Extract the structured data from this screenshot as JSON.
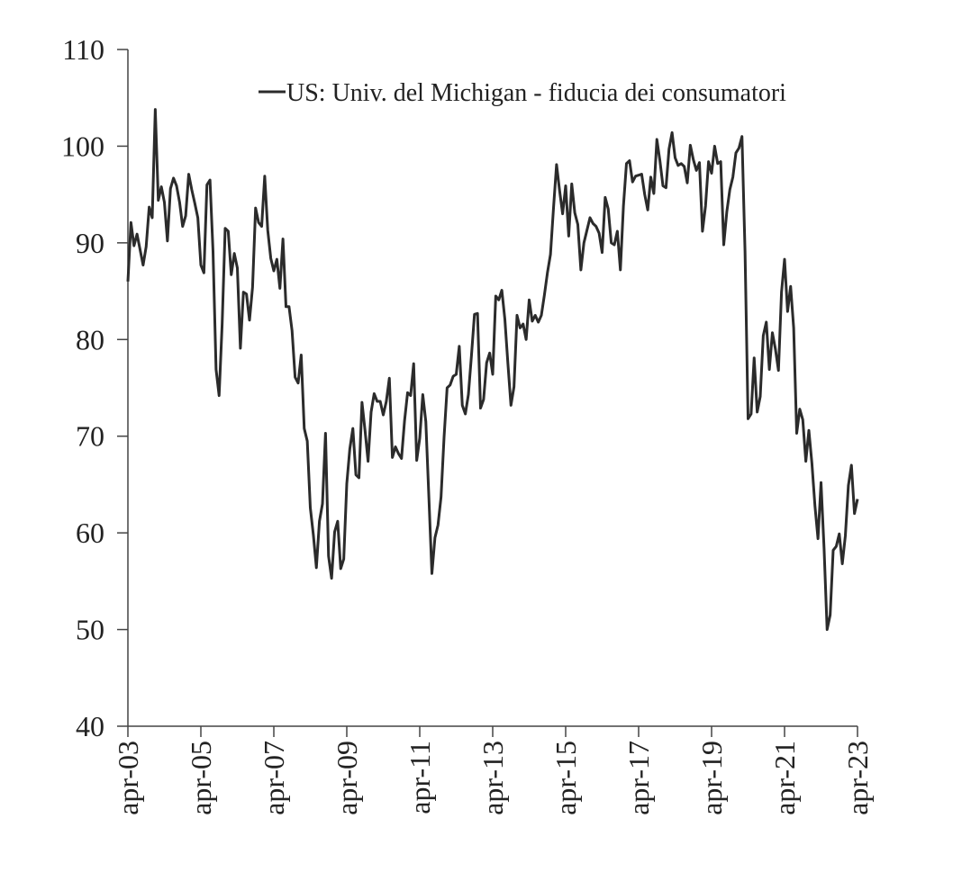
{
  "chart_data": {
    "type": "line",
    "categories": [
      "apr-03",
      null,
      null,
      null,
      null,
      null,
      null,
      null,
      null,
      null,
      null,
      null,
      null,
      null,
      null,
      null,
      null,
      null,
      null,
      null,
      null,
      null,
      null,
      null,
      "apr-05",
      null,
      null,
      null,
      null,
      null,
      null,
      null,
      null,
      null,
      null,
      null,
      null,
      null,
      null,
      null,
      null,
      null,
      null,
      null,
      null,
      null,
      null,
      null,
      "apr-07",
      null,
      null,
      null,
      null,
      null,
      null,
      null,
      null,
      null,
      null,
      null,
      null,
      null,
      null,
      null,
      null,
      null,
      null,
      null,
      null,
      null,
      null,
      null,
      "apr-09",
      null,
      null,
      null,
      null,
      null,
      null,
      null,
      null,
      null,
      null,
      null,
      null,
      null,
      null,
      null,
      null,
      null,
      null,
      null,
      null,
      null,
      null,
      null,
      "apr-11",
      null,
      null,
      null,
      null,
      null,
      null,
      null,
      null,
      null,
      null,
      null,
      null,
      null,
      null,
      null,
      null,
      null,
      null,
      null,
      null,
      null,
      null,
      null,
      "apr-13",
      null,
      null,
      null,
      null,
      null,
      null,
      null,
      null,
      null,
      null,
      null,
      null,
      null,
      null,
      null,
      null,
      null,
      null,
      null,
      null,
      null,
      null,
      null,
      "apr-15",
      null,
      null,
      null,
      null,
      null,
      null,
      null,
      null,
      null,
      null,
      null,
      null,
      null,
      null,
      null,
      null,
      null,
      null,
      null,
      null,
      null,
      null,
      null,
      "apr-17",
      null,
      null,
      null,
      null,
      null,
      null,
      null,
      null,
      null,
      null,
      null,
      null,
      null,
      null,
      null,
      null,
      null,
      null,
      null,
      null,
      null,
      null,
      null,
      "apr-19",
      null,
      null,
      null,
      null,
      null,
      null,
      null,
      null,
      null,
      null,
      null,
      null,
      null,
      null,
      null,
      null,
      null,
      null,
      null,
      null,
      null,
      null,
      null,
      "apr-21",
      null,
      null,
      null,
      null,
      null,
      null,
      null,
      null,
      null,
      null,
      null,
      null,
      null,
      null,
      null,
      null,
      null,
      null,
      null,
      null,
      null,
      null,
      null,
      "apr-23"
    ],
    "series": [
      {
        "name": "US: Univ. del Michigan - fiducia dei consumatori",
        "color": "#2b2b2b",
        "values": [
          86.0,
          92.1,
          89.7,
          90.9,
          89.3,
          87.7,
          89.6,
          93.7,
          92.6,
          103.8,
          94.4,
          95.8,
          94.2,
          90.2,
          95.6,
          96.7,
          95.9,
          94.2,
          91.7,
          92.8,
          97.1,
          95.5,
          94.1,
          92.6,
          87.7,
          86.9,
          96.0,
          96.5,
          89.1,
          76.9,
          74.2,
          81.6,
          91.5,
          91.2,
          86.7,
          88.9,
          87.4,
          79.1,
          84.9,
          84.7,
          82.0,
          85.4,
          93.6,
          92.1,
          91.7,
          96.9,
          91.3,
          88.4,
          87.1,
          88.3,
          85.3,
          90.4,
          83.4,
          83.4,
          80.9,
          76.1,
          75.5,
          78.4,
          70.8,
          69.5,
          62.6,
          59.8,
          56.4,
          61.2,
          63.0,
          70.3,
          57.6,
          55.3,
          60.1,
          61.2,
          56.3,
          57.3,
          65.1,
          68.7,
          70.8,
          66.0,
          65.7,
          73.5,
          70.6,
          67.4,
          72.5,
          74.4,
          73.6,
          73.6,
          72.2,
          73.6,
          76.0,
          67.8,
          68.9,
          68.2,
          67.7,
          71.6,
          74.5,
          74.2,
          77.5,
          67.5,
          69.8,
          74.3,
          71.5,
          63.7,
          55.8,
          59.5,
          60.8,
          63.7,
          69.9,
          75.0,
          75.3,
          76.2,
          76.4,
          79.3,
          73.2,
          72.3,
          74.3,
          78.3,
          82.6,
          82.7,
          72.9,
          73.8,
          77.6,
          78.6,
          76.4,
          84.5,
          84.1,
          85.1,
          82.1,
          77.5,
          73.2,
          75.1,
          82.5,
          81.2,
          81.6,
          80.0,
          84.1,
          81.9,
          82.5,
          81.8,
          82.5,
          84.6,
          86.9,
          88.8,
          93.6,
          98.1,
          95.4,
          93.0,
          95.9,
          90.7,
          96.1,
          93.1,
          91.9,
          87.2,
          90.0,
          91.3,
          92.6,
          92.0,
          91.7,
          91.0,
          89.0,
          94.7,
          93.5,
          90.0,
          89.8,
          91.2,
          87.2,
          93.8,
          98.2,
          98.5,
          96.3,
          96.9,
          97.0,
          97.1,
          95.0,
          93.4,
          96.8,
          95.1,
          100.7,
          98.5,
          95.9,
          95.7,
          99.7,
          101.4,
          98.8,
          98.0,
          98.2,
          97.9,
          96.2,
          100.1,
          98.6,
          97.5,
          98.3,
          91.2,
          93.8,
          98.4,
          97.2,
          100.0,
          98.2,
          98.4,
          89.8,
          93.2,
          95.5,
          96.8,
          99.3,
          99.8,
          101.0,
          89.1,
          71.8,
          72.3,
          78.1,
          72.5,
          74.1,
          80.4,
          81.8,
          76.9,
          80.7,
          79.0,
          76.8,
          84.9,
          88.3,
          82.9,
          85.5,
          81.2,
          70.3,
          72.8,
          71.7,
          67.4,
          70.6,
          67.2,
          62.8,
          59.4,
          65.2,
          58.4,
          50.0,
          51.5,
          58.2,
          58.6,
          59.9,
          56.8,
          59.7,
          64.9,
          67.0,
          62.0,
          63.5
        ]
      }
    ],
    "ylim": [
      40,
      110
    ],
    "yticks": [
      40,
      50,
      60,
      70,
      80,
      90,
      100,
      110
    ],
    "legend": "top-right"
  }
}
